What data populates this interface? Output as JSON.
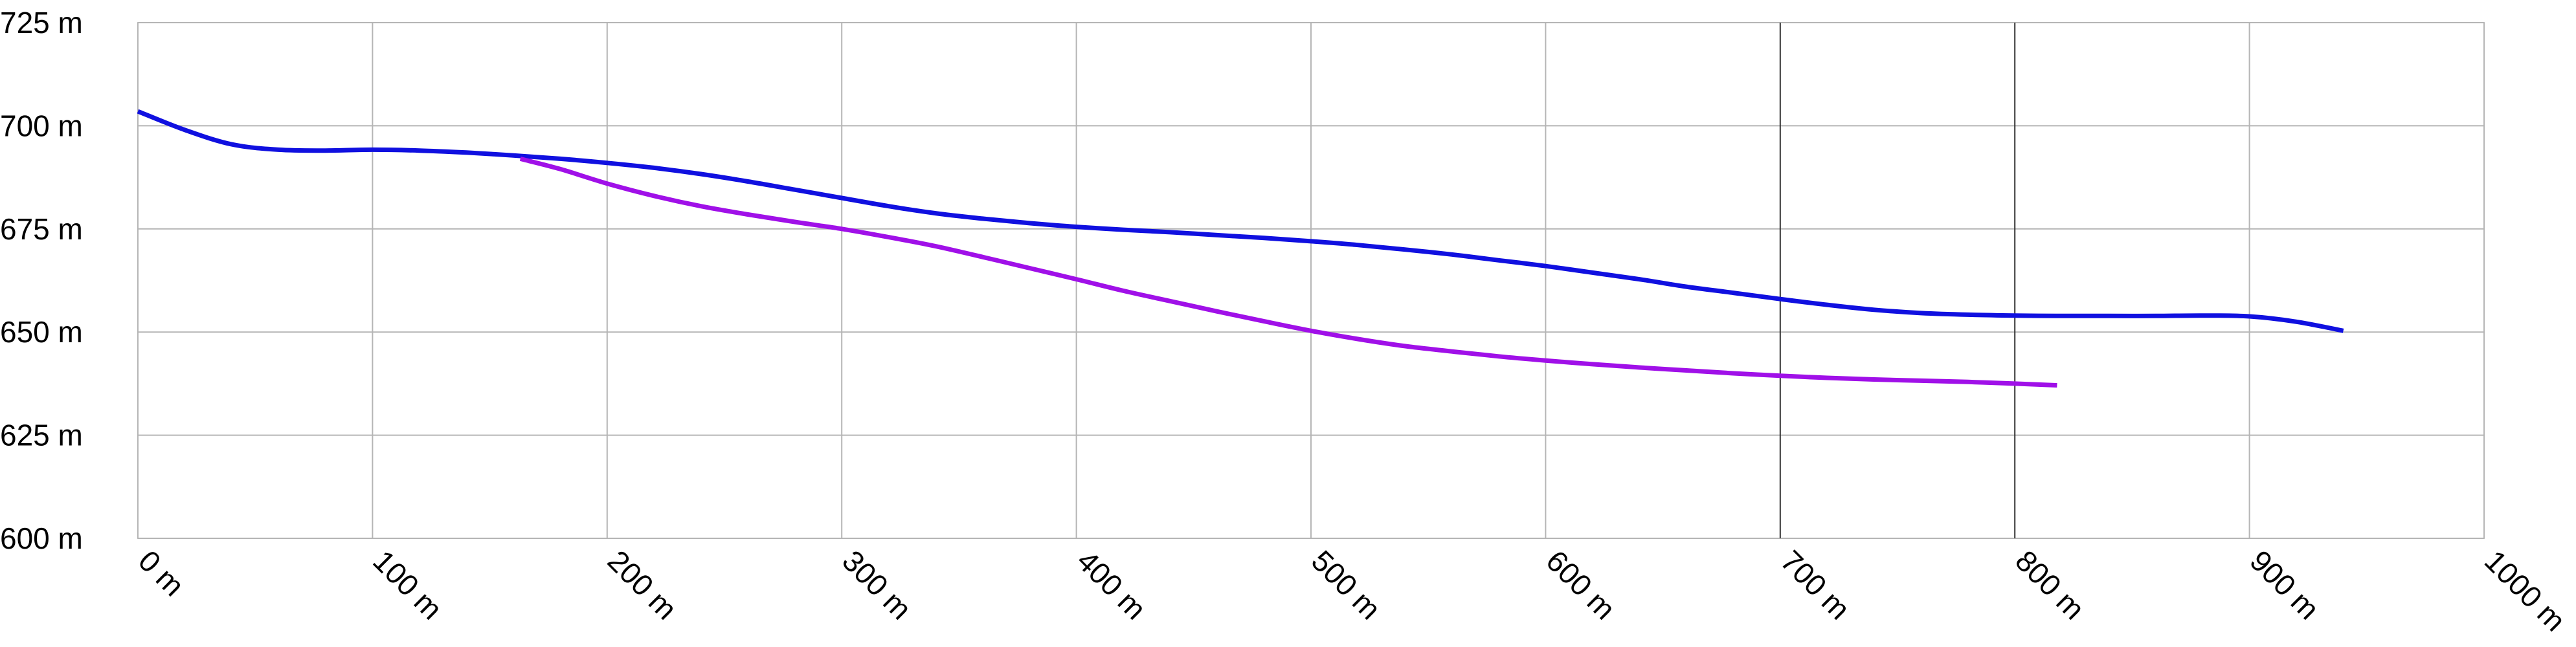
{
  "chart_data": {
    "type": "line",
    "title": "",
    "xlabel": "",
    "ylabel": "",
    "xlim": [
      0,
      1000
    ],
    "ylim": [
      600,
      725
    ],
    "x_ticks": [
      0,
      100,
      200,
      300,
      400,
      500,
      600,
      700,
      800,
      900,
      1000
    ],
    "x_tick_labels": [
      "0 m",
      "100 m",
      "200 m",
      "300 m",
      "400 m",
      "500 m",
      "600 m",
      "700 m",
      "800 m",
      "900 m",
      "1000 m"
    ],
    "y_ticks": [
      600,
      625,
      650,
      675,
      700,
      725
    ],
    "y_tick_labels": [
      "600 m",
      "625 m",
      "650 m",
      "675 m",
      "700 m",
      "725 m"
    ],
    "grid": true,
    "darker_vertical_gridlines": [
      700,
      800
    ],
    "series": [
      {
        "color": "#1010e0",
        "x": [
          0,
          20,
          40,
          60,
          80,
          100,
          120,
          140,
          160,
          180,
          200,
          220,
          240,
          260,
          280,
          300,
          320,
          340,
          360,
          380,
          400,
          420,
          440,
          460,
          480,
          500,
          520,
          540,
          560,
          580,
          600,
          620,
          640,
          660,
          680,
          700,
          720,
          740,
          760,
          780,
          800,
          820,
          840,
          860,
          880,
          900,
          920,
          940
        ],
        "y": [
          703.5,
          699.0,
          695.5,
          694.2,
          694.0,
          694.2,
          694.0,
          693.5,
          692.8,
          692.0,
          691.0,
          689.8,
          688.3,
          686.5,
          684.5,
          682.5,
          680.5,
          678.8,
          677.5,
          676.4,
          675.5,
          674.8,
          674.2,
          673.5,
          672.8,
          672.0,
          671.1,
          670.0,
          668.8,
          667.4,
          666.0,
          664.4,
          662.8,
          661.0,
          659.5,
          658.0,
          656.6,
          655.4,
          654.6,
          654.2,
          654.0,
          653.9,
          653.9,
          653.9,
          654.0,
          653.8,
          652.5,
          650.3
        ]
      },
      {
        "color": "#a010e8",
        "x": [
          163,
          180,
          200,
          220,
          240,
          260,
          280,
          300,
          320,
          340,
          360,
          380,
          400,
          420,
          440,
          460,
          480,
          500,
          520,
          540,
          560,
          580,
          600,
          620,
          640,
          660,
          680,
          700,
          720,
          740,
          760,
          780,
          800,
          818
        ],
        "y": [
          692.0,
          689.5,
          686.0,
          683.0,
          680.5,
          678.5,
          676.7,
          675.0,
          673.0,
          670.8,
          668.2,
          665.5,
          662.8,
          660.0,
          657.5,
          655.0,
          652.6,
          650.3,
          648.3,
          646.6,
          645.3,
          644.1,
          643.1,
          642.2,
          641.4,
          640.7,
          640.0,
          639.4,
          638.9,
          638.5,
          638.2,
          637.9,
          637.5,
          637.1
        ]
      }
    ]
  }
}
